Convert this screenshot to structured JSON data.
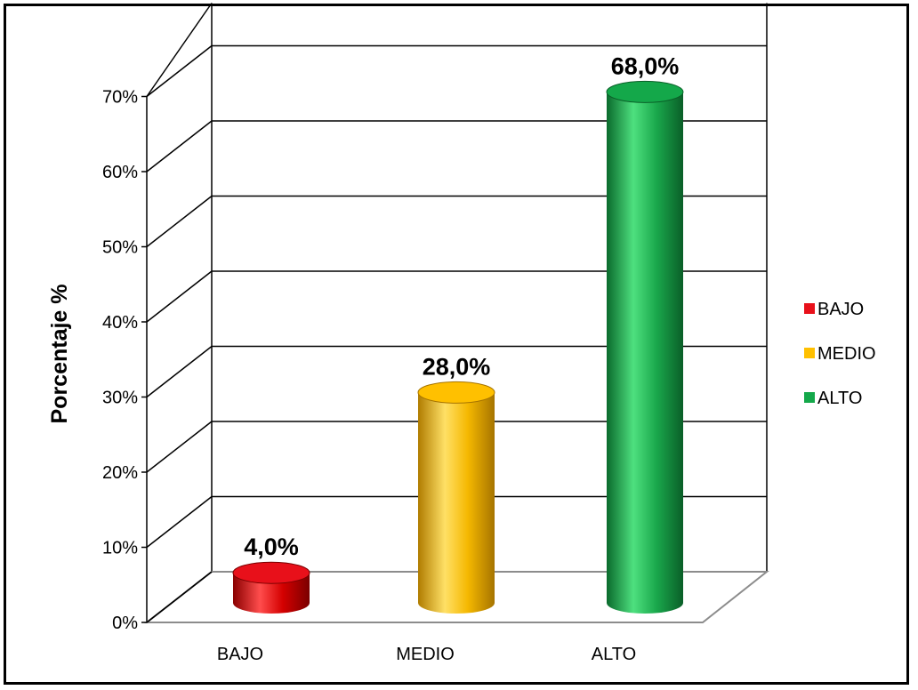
{
  "chart_data": {
    "type": "bar",
    "style": "3d-cylinder",
    "categories": [
      "BAJO",
      "MEDIO",
      "ALTO"
    ],
    "values": [
      4.0,
      28.0,
      68.0
    ],
    "data_labels": [
      "4,0%",
      "28,0%",
      "68,0%"
    ],
    "colors": [
      "#e8101a",
      "#ffc000",
      "#14a84a"
    ],
    "title": "",
    "xlabel": "",
    "ylabel": "Porcentaje %",
    "ylim": [
      0,
      70
    ],
    "yticks": [
      "0%",
      "10%",
      "20%",
      "30%",
      "40%",
      "50%",
      "60%",
      "70%"
    ],
    "grid": true,
    "legend": {
      "placement": "right",
      "items": [
        {
          "label": "BAJO",
          "color": "#e8101a"
        },
        {
          "label": "MEDIO",
          "color": "#ffc000"
        },
        {
          "label": "ALTO",
          "color": "#14a84a"
        }
      ]
    }
  }
}
